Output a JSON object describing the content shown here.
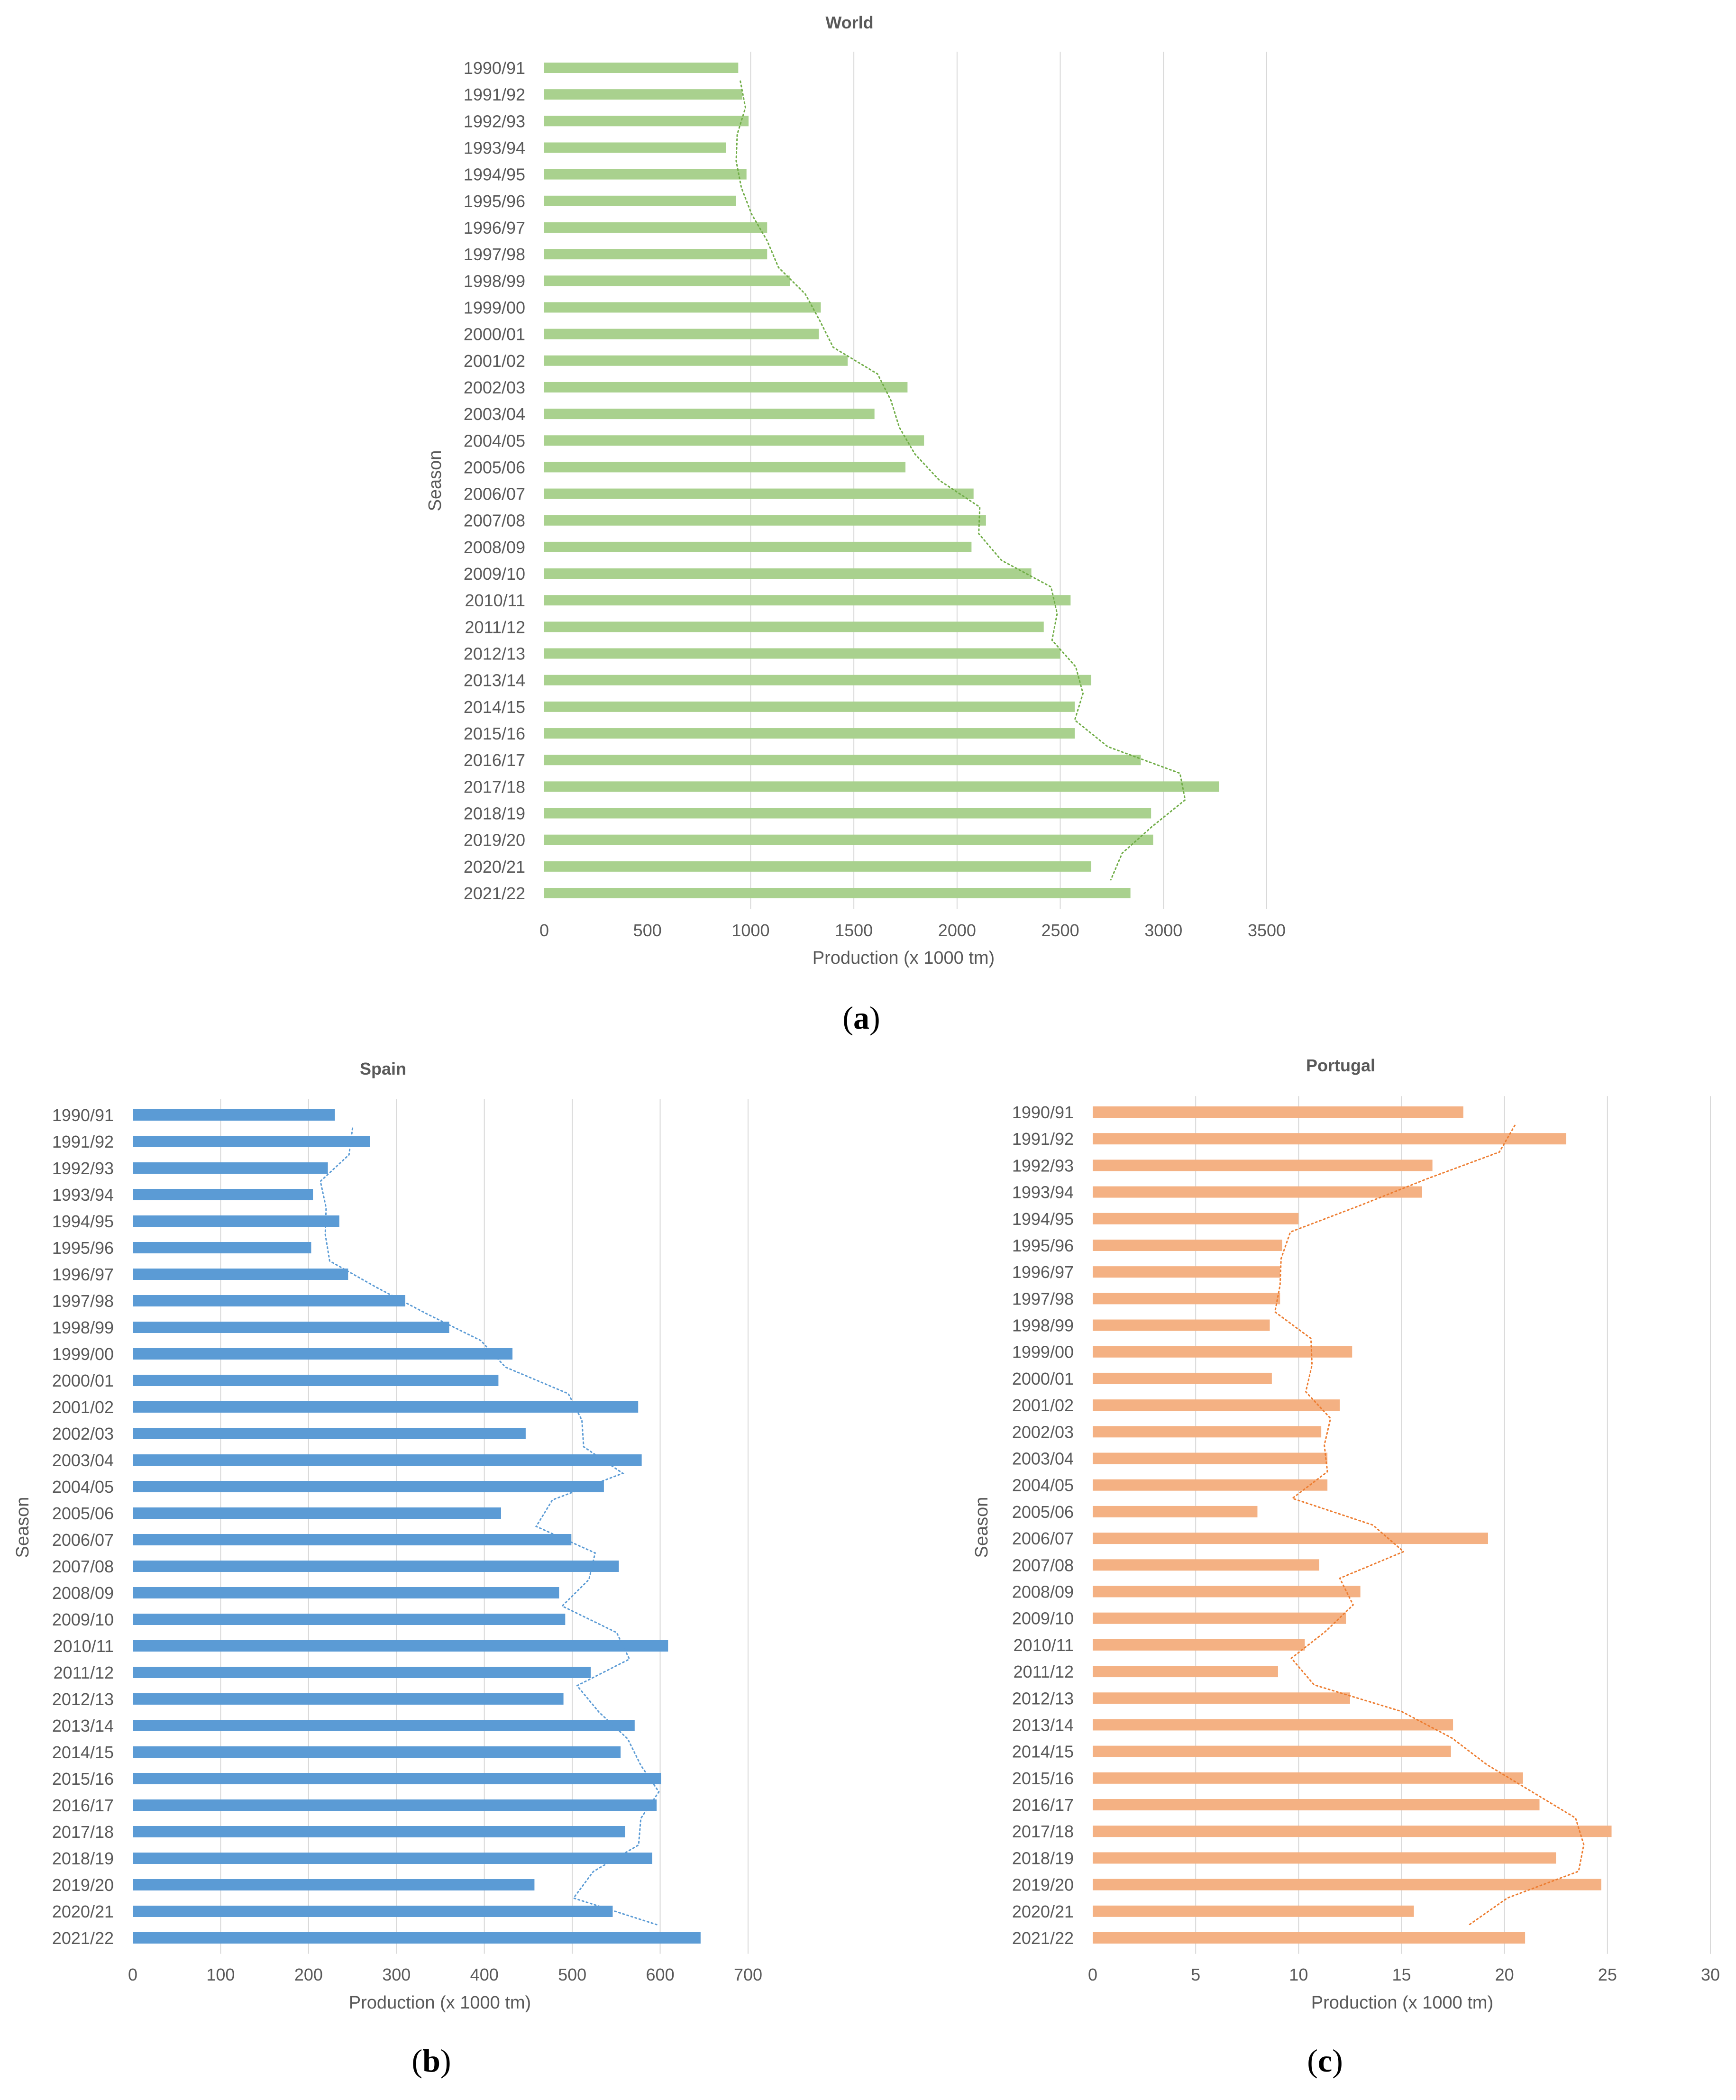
{
  "colors": {
    "world_bar": "#a9d18e",
    "world_trend": "#70ad47",
    "spain_bar": "#5b9bd5",
    "spain_trend": "#5b9bd5",
    "portugal_bar": "#f4b183",
    "portugal_trend": "#ed7d31",
    "gridline": "#d9d9d9",
    "text": "#595959"
  },
  "captions": {
    "a": {
      "open": "(",
      "letter": "a",
      "close": ")"
    },
    "b": {
      "open": "(",
      "letter": "b",
      "close": ")"
    },
    "c": {
      "open": "(",
      "letter": "c",
      "close": ")"
    }
  },
  "chart_data": [
    {
      "id": "world",
      "type": "bar",
      "orientation": "horizontal",
      "title": "World",
      "xlabel": "Production (x 1000 tm)",
      "ylabel": "Season",
      "xlim": [
        0,
        3500
      ],
      "xticks": [
        0,
        500,
        1000,
        1500,
        2000,
        2500,
        3000,
        3500
      ],
      "gridlines_at": [
        1000,
        1500,
        2000,
        2500,
        3000,
        3500
      ],
      "trendline": "2-period moving average (dotted)",
      "categories": [
        "1990/91",
        "1991/92",
        "1992/93",
        "1993/94",
        "1994/95",
        "1995/96",
        "1996/97",
        "1997/98",
        "1998/99",
        "1999/00",
        "2000/01",
        "2001/02",
        "2002/03",
        "2003/04",
        "2004/05",
        "2005/06",
        "2006/07",
        "2007/08",
        "2008/09",
        "2009/10",
        "2010/11",
        "2011/12",
        "2012/13",
        "2013/14",
        "2014/15",
        "2015/16",
        "2016/17",
        "2017/18",
        "2018/19",
        "2019/20",
        "2020/21",
        "2021/22"
      ],
      "values": [
        940,
        960,
        990,
        880,
        980,
        930,
        1080,
        1080,
        1190,
        1340,
        1330,
        1470,
        1760,
        1600,
        1840,
        1750,
        2080,
        2140,
        2070,
        2360,
        2550,
        2420,
        2500,
        2650,
        2570,
        2570,
        2890,
        3270,
        2940,
        2950,
        2650,
        2840
      ]
    },
    {
      "id": "spain",
      "type": "bar",
      "orientation": "horizontal",
      "title": "Spain",
      "xlabel": "Production (x 1000 tm)",
      "ylabel": "Season",
      "xlim": [
        0,
        700
      ],
      "xticks": [
        0,
        100,
        200,
        300,
        400,
        500,
        600,
        700
      ],
      "gridlines_at": [
        100,
        200,
        300,
        400,
        500,
        600,
        700
      ],
      "trendline": "2-period moving average (dotted)",
      "categories": [
        "1990/91",
        "1991/92",
        "1992/93",
        "1993/94",
        "1994/95",
        "1995/96",
        "1996/97",
        "1997/98",
        "1998/99",
        "1999/00",
        "2000/01",
        "2001/02",
        "2002/03",
        "2003/04",
        "2004/05",
        "2005/06",
        "2006/07",
        "2007/08",
        "2008/09",
        "2009/10",
        "2010/11",
        "2011/12",
        "2012/13",
        "2013/14",
        "2014/15",
        "2015/16",
        "2016/17",
        "2017/18",
        "2018/19",
        "2019/20",
        "2020/21",
        "2021/22"
      ],
      "values": [
        230,
        270,
        222,
        205,
        235,
        203,
        245,
        310,
        360,
        432,
        416,
        575,
        447,
        579,
        536,
        419,
        499,
        553,
        485,
        492,
        609,
        521,
        490,
        571,
        555,
        601,
        596,
        560,
        591,
        457,
        546,
        646
      ]
    },
    {
      "id": "portugal",
      "type": "bar",
      "orientation": "horizontal",
      "title": "Portugal",
      "xlabel": "Production (x 1000 tm)",
      "ylabel": "Season",
      "xlim": [
        0,
        30
      ],
      "xticks": [
        0,
        5,
        10,
        15,
        20,
        25,
        30
      ],
      "gridlines_at": [
        5,
        10,
        15,
        20,
        25,
        30
      ],
      "trendline": "2-period moving average (dotted)",
      "categories": [
        "1990/91",
        "1991/92",
        "1992/93",
        "1993/94",
        "1994/95",
        "1995/96",
        "1996/97",
        "1997/98",
        "1998/99",
        "1999/00",
        "2000/01",
        "2001/02",
        "2002/03",
        "2003/04",
        "2004/05",
        "2005/06",
        "2006/07",
        "2007/08",
        "2008/09",
        "2009/10",
        "2010/11",
        "2011/12",
        "2012/13",
        "2013/14",
        "2014/15",
        "2015/16",
        "2016/17",
        "2017/18",
        "2018/19",
        "2019/20",
        "2020/21",
        "2021/22"
      ],
      "values": [
        18,
        23,
        16.5,
        16,
        10,
        9.2,
        9.1,
        9.1,
        8.6,
        12.6,
        8.7,
        12,
        11.1,
        11.4,
        11.4,
        8.0,
        19.2,
        11.0,
        13.0,
        12.3,
        10.3,
        9.0,
        12.5,
        17.5,
        17.4,
        20.9,
        21.7,
        25.2,
        22.5,
        24.7,
        15.6,
        21.0
      ]
    }
  ]
}
